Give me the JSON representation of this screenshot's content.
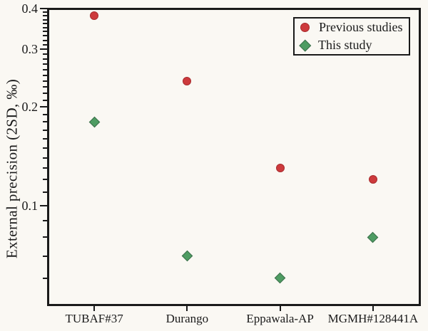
{
  "figure": {
    "background": "#faf8f3",
    "axis_color": "#1a1a1a",
    "text_color": "#1a1a1a"
  },
  "chart_data": {
    "type": "scatter",
    "title": "",
    "xlabel": "",
    "ylabel": "External precision (2SD, ‰)",
    "yscale": "log",
    "ylim": [
      0.05,
      0.4
    ],
    "yticks": [
      0.4,
      0.3,
      0.2,
      0.1
    ],
    "ytick_labels": [
      "0.4",
      "0.3",
      "0.2",
      "0.1"
    ],
    "minor_tick_step": 0.01,
    "grid": false,
    "legend_position": "top-right-inside",
    "categories": [
      "TUBAF#37",
      "Durango",
      "Eppawala-AP",
      "MGMH#128441A"
    ],
    "series": [
      {
        "name": "Previous studies",
        "marker": "circle",
        "fill": "#cd3a3c",
        "edge": "#a82c2e",
        "values": [
          0.38,
          0.24,
          0.13,
          0.12
        ]
      },
      {
        "name": "This study",
        "marker": "diamond",
        "fill": "#4e9c62",
        "edge": "#3c6e4b",
        "values": [
          0.18,
          0.07,
          0.06,
          0.08
        ]
      }
    ]
  }
}
